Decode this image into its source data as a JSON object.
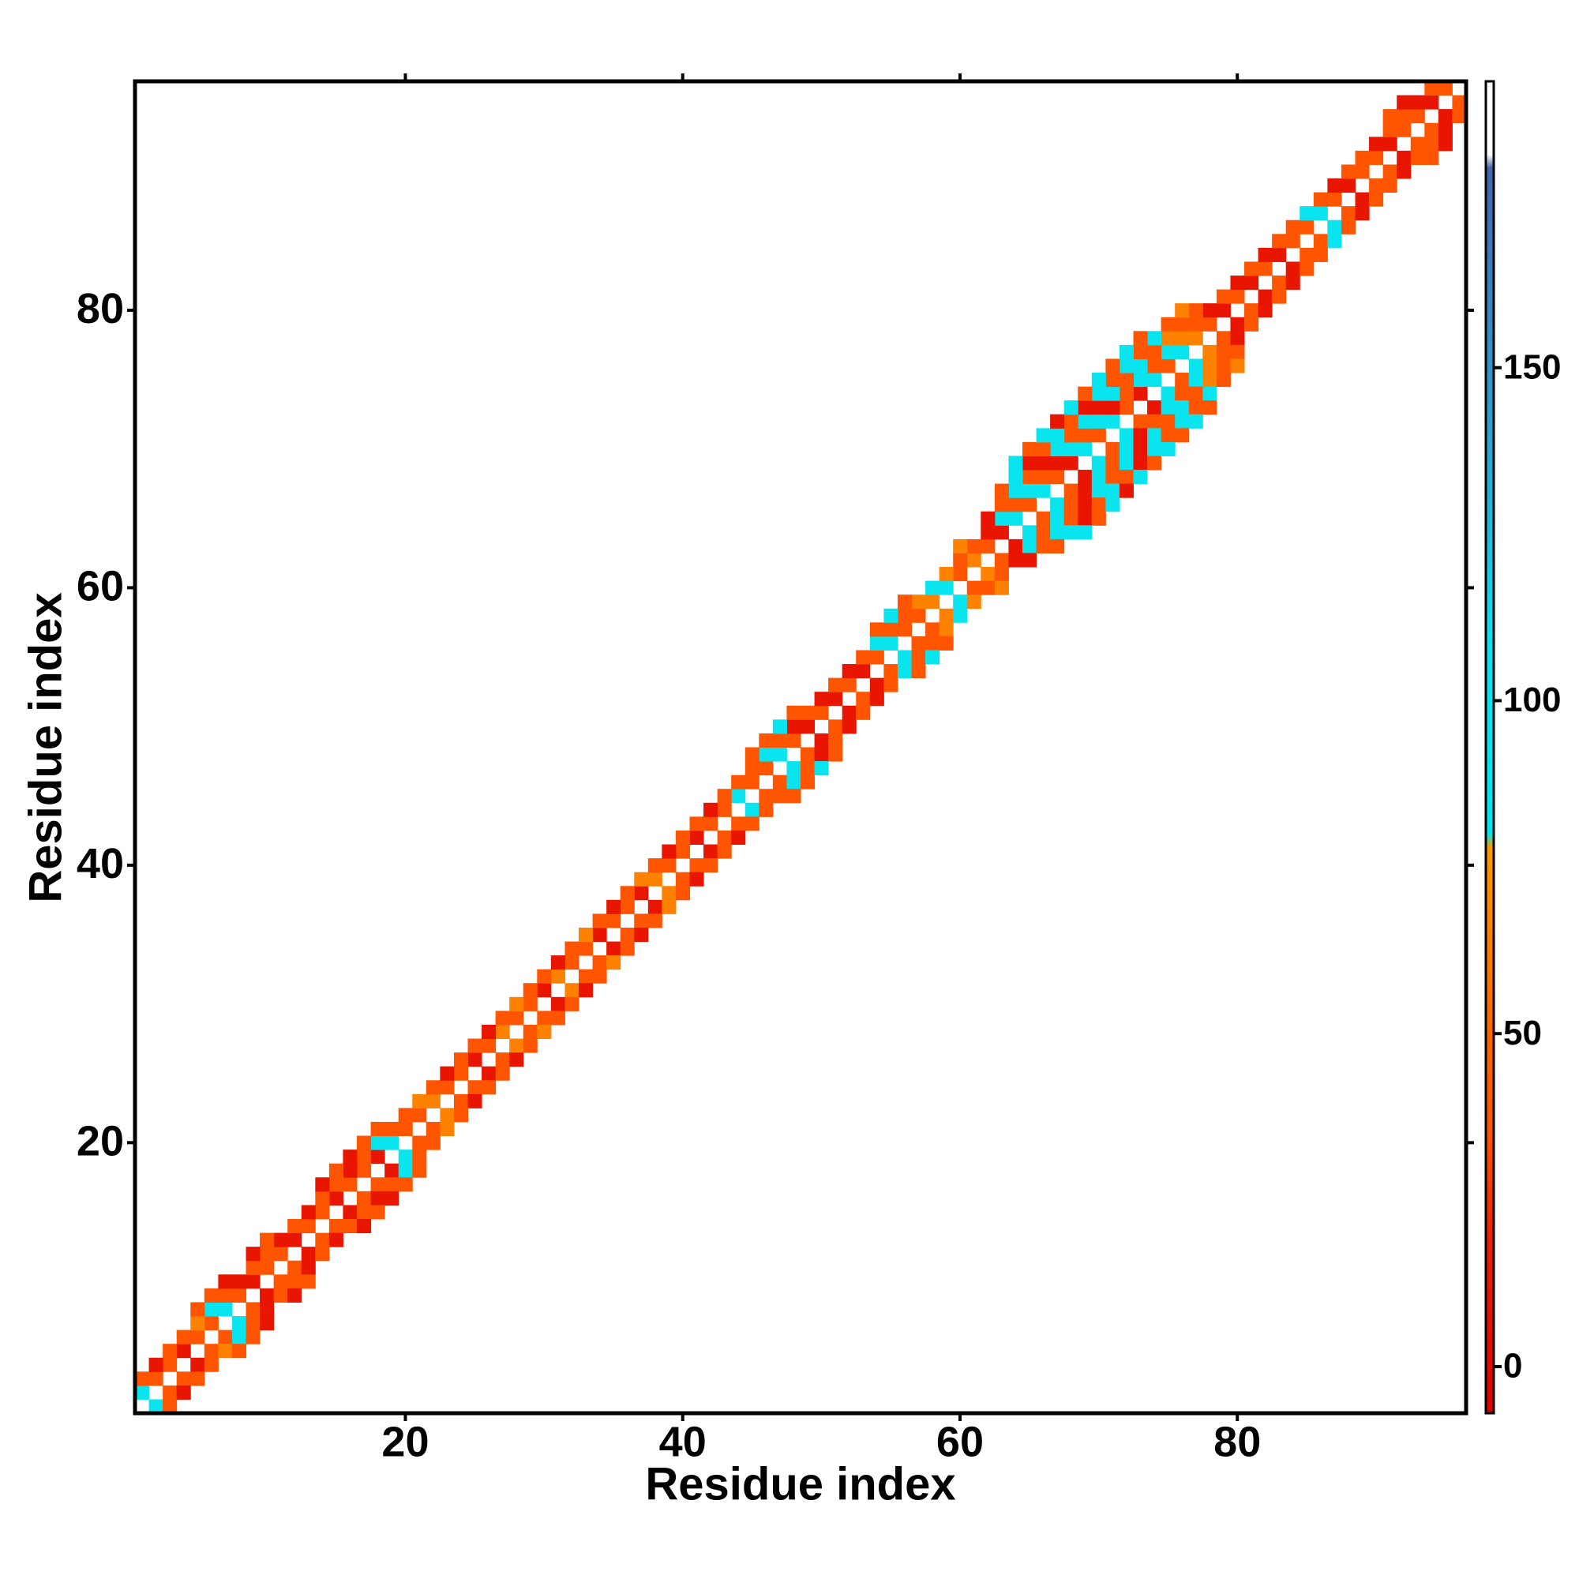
{
  "chart_data": {
    "type": "heatmap",
    "x_label": "Residue index",
    "y_label": "Residue index",
    "symmetric": true,
    "xlim": [
      0.5,
      96.5
    ],
    "ylim": [
      0.5,
      96.5
    ],
    "xticks": [
      20,
      40,
      60,
      80
    ],
    "yticks": [
      20,
      40,
      60,
      80
    ],
    "clim": [
      -7,
      193
    ],
    "cticks": [
      0,
      50,
      100,
      150
    ],
    "colorscale": [
      [
        -7,
        "#dd0000"
      ],
      [
        20,
        "#ee2200"
      ],
      [
        35,
        "#ff5500"
      ],
      [
        50,
        "#ff6600"
      ],
      [
        78,
        "#ff9900"
      ],
      [
        80,
        "#00e8ee"
      ],
      [
        110,
        "#11e0ee"
      ],
      [
        125,
        "#22bbdd"
      ],
      [
        180,
        "#4466aa"
      ],
      [
        182,
        "#ffffff"
      ],
      [
        193,
        "#ffffff"
      ]
    ],
    "cells": [
      [
        1,
        2,
        95
      ],
      [
        2,
        3,
        35
      ],
      [
        3,
        4,
        35
      ],
      [
        4,
        5,
        10
      ],
      [
        5,
        6,
        35
      ],
      [
        6,
        7,
        35
      ],
      [
        7,
        8,
        95
      ],
      [
        8,
        9,
        35
      ],
      [
        9,
        10,
        10
      ],
      [
        10,
        11,
        35
      ],
      [
        11,
        12,
        35
      ],
      [
        12,
        13,
        10
      ],
      [
        13,
        14,
        35
      ],
      [
        14,
        15,
        35
      ],
      [
        15,
        16,
        10
      ],
      [
        16,
        17,
        35
      ],
      [
        17,
        18,
        35
      ],
      [
        18,
        19,
        10
      ],
      [
        19,
        20,
        95
      ],
      [
        20,
        21,
        35
      ],
      [
        21,
        22,
        35
      ],
      [
        22,
        23,
        65
      ],
      [
        23,
        24,
        35
      ],
      [
        24,
        25,
        35
      ],
      [
        25,
        26,
        10
      ],
      [
        26,
        27,
        35
      ],
      [
        27,
        28,
        65
      ],
      [
        28,
        29,
        35
      ],
      [
        29,
        30,
        35
      ],
      [
        30,
        31,
        10
      ],
      [
        31,
        32,
        65
      ],
      [
        32,
        33,
        35
      ],
      [
        33,
        34,
        35
      ],
      [
        34,
        35,
        10
      ],
      [
        35,
        36,
        35
      ],
      [
        36,
        37,
        35
      ],
      [
        37,
        38,
        10
      ],
      [
        38,
        39,
        65
      ],
      [
        39,
        40,
        35
      ],
      [
        40,
        41,
        35
      ],
      [
        41,
        42,
        10
      ],
      [
        42,
        43,
        35
      ],
      [
        43,
        44,
        35
      ],
      [
        44,
        45,
        95
      ],
      [
        45,
        46,
        35
      ],
      [
        46,
        47,
        35
      ],
      [
        47,
        48,
        95
      ],
      [
        48,
        49,
        35
      ],
      [
        49,
        50,
        10
      ],
      [
        50,
        51,
        35
      ],
      [
        51,
        52,
        10
      ],
      [
        52,
        53,
        35
      ],
      [
        53,
        54,
        10
      ],
      [
        54,
        55,
        35
      ],
      [
        55,
        56,
        95
      ],
      [
        56,
        57,
        35
      ],
      [
        57,
        58,
        35
      ],
      [
        58,
        59,
        65
      ],
      [
        59,
        60,
        95
      ],
      [
        60,
        61,
        35
      ],
      [
        61,
        62,
        65
      ],
      [
        62,
        63,
        35
      ],
      [
        63,
        64,
        10
      ],
      [
        64,
        65,
        95
      ],
      [
        65,
        66,
        35
      ],
      [
        66,
        67,
        95
      ],
      [
        67,
        68,
        35
      ],
      [
        68,
        69,
        10
      ],
      [
        69,
        70,
        95
      ],
      [
        70,
        71,
        35
      ],
      [
        71,
        72,
        95
      ],
      [
        72,
        73,
        35
      ],
      [
        73,
        74,
        10
      ],
      [
        74,
        75,
        95
      ],
      [
        75,
        76,
        35
      ],
      [
        76,
        77,
        95
      ],
      [
        77,
        78,
        65
      ],
      [
        78,
        79,
        35
      ],
      [
        79,
        80,
        10
      ],
      [
        80,
        81,
        35
      ],
      [
        81,
        82,
        10
      ],
      [
        82,
        83,
        35
      ],
      [
        83,
        84,
        10
      ],
      [
        84,
        85,
        35
      ],
      [
        85,
        86,
        35
      ],
      [
        86,
        87,
        95
      ],
      [
        87,
        88,
        35
      ],
      [
        88,
        89,
        10
      ],
      [
        89,
        90,
        35
      ],
      [
        90,
        91,
        35
      ],
      [
        91,
        92,
        10
      ],
      [
        92,
        93,
        35
      ],
      [
        93,
        94,
        35
      ],
      [
        94,
        95,
        10
      ],
      [
        95,
        96,
        35
      ],
      [
        1,
        3,
        35
      ],
      [
        2,
        4,
        10
      ],
      [
        3,
        5,
        35
      ],
      [
        4,
        6,
        35
      ],
      [
        5,
        7,
        65
      ],
      [
        6,
        8,
        95
      ],
      [
        7,
        9,
        35
      ],
      [
        8,
        10,
        10
      ],
      [
        9,
        11,
        35
      ],
      [
        10,
        12,
        35
      ],
      [
        11,
        13,
        10
      ],
      [
        12,
        14,
        35
      ],
      [
        13,
        15,
        10
      ],
      [
        14,
        16,
        35
      ],
      [
        15,
        17,
        35
      ],
      [
        16,
        18,
        10
      ],
      [
        17,
        19,
        35
      ],
      [
        18,
        20,
        95
      ],
      [
        19,
        21,
        35
      ],
      [
        20,
        22,
        35
      ],
      [
        21,
        23,
        65
      ],
      [
        22,
        24,
        35
      ],
      [
        23,
        25,
        10
      ],
      [
        24,
        26,
        35
      ],
      [
        25,
        27,
        35
      ],
      [
        26,
        28,
        10
      ],
      [
        27,
        29,
        35
      ],
      [
        28,
        30,
        65
      ],
      [
        29,
        31,
        35
      ],
      [
        30,
        32,
        35
      ],
      [
        31,
        33,
        10
      ],
      [
        32,
        34,
        35
      ],
      [
        33,
        35,
        65
      ],
      [
        34,
        36,
        35
      ],
      [
        35,
        37,
        10
      ],
      [
        36,
        38,
        35
      ],
      [
        37,
        39,
        65
      ],
      [
        38,
        40,
        35
      ],
      [
        39,
        41,
        10
      ],
      [
        40,
        42,
        35
      ],
      [
        41,
        43,
        35
      ],
      [
        42,
        44,
        10
      ],
      [
        43,
        45,
        35
      ],
      [
        44,
        46,
        35
      ],
      [
        45,
        47,
        35
      ],
      [
        46,
        48,
        95
      ],
      [
        47,
        49,
        35
      ],
      [
        48,
        50,
        10
      ],
      [
        49,
        51,
        35
      ],
      [
        50,
        52,
        10
      ],
      [
        51,
        53,
        35
      ],
      [
        52,
        54,
        10
      ],
      [
        53,
        55,
        35
      ],
      [
        54,
        56,
        95
      ],
      [
        55,
        57,
        35
      ],
      [
        56,
        58,
        35
      ],
      [
        57,
        59,
        65
      ],
      [
        58,
        60,
        95
      ],
      [
        59,
        61,
        65
      ],
      [
        60,
        62,
        35
      ],
      [
        61,
        63,
        35
      ],
      [
        62,
        64,
        10
      ],
      [
        63,
        65,
        95
      ],
      [
        64,
        66,
        35
      ],
      [
        65,
        67,
        95
      ],
      [
        66,
        68,
        35
      ],
      [
        67,
        69,
        10
      ],
      [
        68,
        70,
        95
      ],
      [
        69,
        71,
        35
      ],
      [
        70,
        72,
        95
      ],
      [
        71,
        73,
        10
      ],
      [
        72,
        74,
        35
      ],
      [
        73,
        75,
        95
      ],
      [
        74,
        76,
        35
      ],
      [
        75,
        77,
        95
      ],
      [
        76,
        78,
        65
      ],
      [
        77,
        79,
        35
      ],
      [
        78,
        80,
        10
      ],
      [
        79,
        81,
        35
      ],
      [
        80,
        82,
        10
      ],
      [
        81,
        83,
        35
      ],
      [
        82,
        84,
        10
      ],
      [
        83,
        85,
        35
      ],
      [
        84,
        86,
        35
      ],
      [
        85,
        87,
        95
      ],
      [
        86,
        88,
        35
      ],
      [
        87,
        89,
        10
      ],
      [
        88,
        90,
        35
      ],
      [
        89,
        91,
        35
      ],
      [
        90,
        92,
        10
      ],
      [
        91,
        93,
        35
      ],
      [
        92,
        94,
        35
      ],
      [
        93,
        95,
        10
      ],
      [
        94,
        96,
        35
      ],
      [
        5,
        8,
        35
      ],
      [
        6,
        9,
        35
      ],
      [
        7,
        10,
        10
      ],
      [
        9,
        12,
        10
      ],
      [
        10,
        13,
        35
      ],
      [
        14,
        17,
        10
      ],
      [
        15,
        18,
        35
      ],
      [
        16,
        19,
        10
      ],
      [
        17,
        20,
        35
      ],
      [
        18,
        21,
        35
      ],
      [
        45,
        48,
        35
      ],
      [
        46,
        49,
        35
      ],
      [
        47,
        50,
        95
      ],
      [
        48,
        51,
        35
      ],
      [
        54,
        57,
        35
      ],
      [
        55,
        58,
        95
      ],
      [
        56,
        59,
        35
      ],
      [
        60,
        63,
        65
      ],
      [
        62,
        65,
        10
      ],
      [
        63,
        66,
        35
      ],
      [
        64,
        67,
        95
      ],
      [
        65,
        68,
        35
      ],
      [
        66,
        69,
        10
      ],
      [
        67,
        70,
        95
      ],
      [
        68,
        71,
        35
      ],
      [
        69,
        72,
        95
      ],
      [
        70,
        73,
        10
      ],
      [
        71,
        74,
        95
      ],
      [
        72,
        75,
        35
      ],
      [
        73,
        76,
        95
      ],
      [
        74,
        77,
        35
      ],
      [
        75,
        78,
        65
      ],
      [
        76,
        79,
        35
      ],
      [
        77,
        80,
        35
      ],
      [
        91,
        94,
        35
      ],
      [
        92,
        95,
        10
      ],
      [
        63,
        67,
        35
      ],
      [
        64,
        68,
        95
      ],
      [
        65,
        69,
        10
      ],
      [
        66,
        70,
        35
      ],
      [
        67,
        71,
        95
      ],
      [
        68,
        72,
        35
      ],
      [
        69,
        73,
        10
      ],
      [
        70,
        74,
        95
      ],
      [
        71,
        75,
        35
      ],
      [
        72,
        76,
        95
      ],
      [
        73,
        77,
        35
      ],
      [
        74,
        78,
        95
      ],
      [
        75,
        79,
        35
      ],
      [
        76,
        80,
        65
      ],
      [
        64,
        69,
        95
      ],
      [
        65,
        70,
        35
      ],
      [
        66,
        71,
        95
      ],
      [
        67,
        72,
        10
      ],
      [
        68,
        73,
        95
      ],
      [
        69,
        74,
        35
      ],
      [
        70,
        75,
        95
      ],
      [
        71,
        76,
        35
      ],
      [
        72,
        77,
        95
      ],
      [
        73,
        78,
        35
      ]
    ]
  }
}
